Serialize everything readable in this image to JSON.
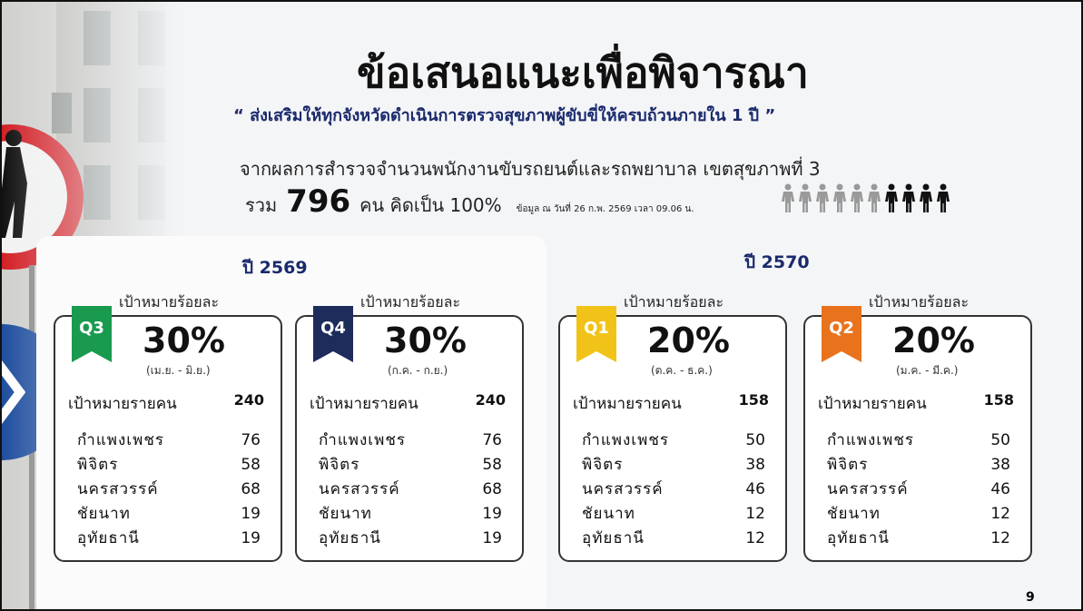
{
  "header": {
    "title": "ข้อเสนอแนะเพื่อพิจารณา",
    "subtitle": "“ ส่งเสริมให้ทุกจังหวัดดำเนินการตรวจสุขภาพผู้ขับขี่ให้ครบถ้วนภายใน 1 ปี ”"
  },
  "summary": {
    "line1": "จากผลการสำรวจจำนวนพนักงานขับรถยนต์และรถพยาบาล เขตสุขภาพที่ 3",
    "total_prefix": "รวม",
    "total": 796,
    "total_suffix": "คน คิดเป็น 100%",
    "note": "ข้อมูล ณ วันที่ 26 ก.พ. 2569 เวลา 09.06 น."
  },
  "years": [
    {
      "label": "ปี 2569",
      "cards": [
        {
          "quarter": "Q3",
          "target_label": "เป้าหมายร้อยละ",
          "percent": "30%",
          "period": "(เม.ย. - มิ.ย.)",
          "people_label": "เป้าหมายรายคน",
          "people": 240,
          "provinces": [
            {
              "name": "กำแพงเพชร",
              "value": 76
            },
            {
              "name": "พิจิตร",
              "value": 58
            },
            {
              "name": "นครสวรรค์",
              "value": 68
            },
            {
              "name": "ชัยนาท",
              "value": 19
            },
            {
              "name": "อุทัยธานี",
              "value": 19
            }
          ]
        },
        {
          "quarter": "Q4",
          "target_label": "เป้าหมายร้อยละ",
          "percent": "30%",
          "period": "(ก.ค. - ก.ย.)",
          "people_label": "เป้าหมายรายคน",
          "people": 240,
          "provinces": [
            {
              "name": "กำแพงเพชร",
              "value": 76
            },
            {
              "name": "พิจิตร",
              "value": 58
            },
            {
              "name": "นครสวรรค์",
              "value": 68
            },
            {
              "name": "ชัยนาท",
              "value": 19
            },
            {
              "name": "อุทัยธานี",
              "value": 19
            }
          ]
        }
      ]
    },
    {
      "label": "ปี 2570",
      "cards": [
        {
          "quarter": "Q1",
          "target_label": "เป้าหมายร้อยละ",
          "percent": "20%",
          "period": "(ต.ค. - ธ.ค.)",
          "people_label": "เป้าหมายรายคน",
          "people": 158,
          "provinces": [
            {
              "name": "กำแพงเพชร",
              "value": 50
            },
            {
              "name": "พิจิตร",
              "value": 38
            },
            {
              "name": "นครสวรรค์",
              "value": 46
            },
            {
              "name": "ชัยนาท",
              "value": 12
            },
            {
              "name": "อุทัยธานี",
              "value": 12
            }
          ]
        },
        {
          "quarter": "Q2",
          "target_label": "เป้าหมายร้อยละ",
          "percent": "20%",
          "period": "(ม.ค. - มี.ค.)",
          "people_label": "เป้าหมายรายคน",
          "people": 158,
          "provinces": [
            {
              "name": "กำแพงเพชร",
              "value": 50
            },
            {
              "name": "พิจิตร",
              "value": 38
            },
            {
              "name": "นครสวรรค์",
              "value": 46
            },
            {
              "name": "ชัยนาท",
              "value": 12
            },
            {
              "name": "อุทัยธานี",
              "value": 12
            }
          ]
        }
      ]
    }
  ],
  "page_number": 9
}
